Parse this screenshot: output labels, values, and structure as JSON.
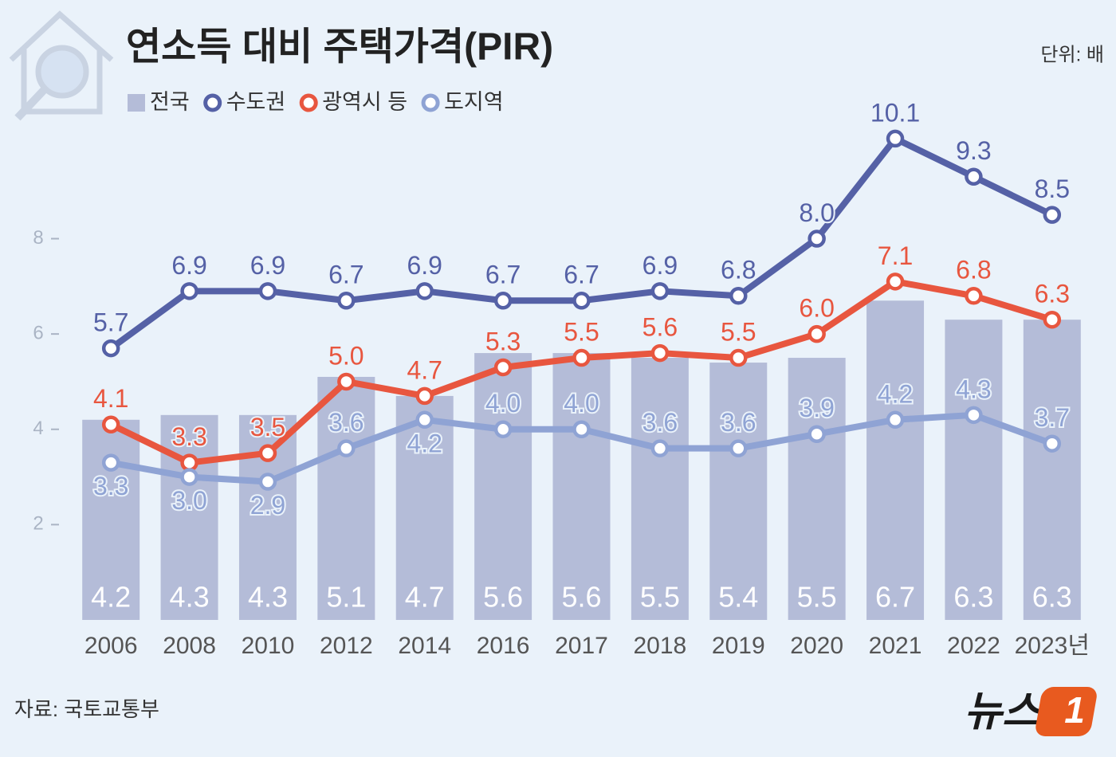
{
  "chart_data": {
    "type": "combo",
    "title": "연소득 대비 주택가격(PIR)",
    "unit": "단위: 배",
    "source": "자료: 국토교통부",
    "logo": {
      "text": "뉴스",
      "badge": "1"
    },
    "categories": [
      "2006",
      "2008",
      "2010",
      "2012",
      "2014",
      "2016",
      "2017",
      "2018",
      "2019",
      "2020",
      "2021",
      "2022",
      "2023년"
    ],
    "ylim": [
      0,
      10.5
    ],
    "yticks": [
      2,
      4,
      6,
      8
    ],
    "series": [
      {
        "name": "전국",
        "type": "bar",
        "color": "#b4bcd8",
        "values": [
          4.2,
          4.3,
          4.3,
          5.1,
          4.7,
          5.6,
          5.6,
          5.5,
          5.4,
          5.5,
          6.7,
          6.3,
          6.3
        ]
      },
      {
        "name": "수도권",
        "type": "line",
        "color": "#5561a6",
        "values": [
          5.7,
          6.9,
          6.9,
          6.7,
          6.9,
          6.7,
          6.7,
          6.9,
          6.8,
          8.0,
          10.1,
          9.3,
          8.5
        ],
        "value_labels": [
          "5.7",
          "6.9",
          "6.9",
          "6.7",
          "6.9",
          "6.7",
          "6.7",
          "6.9",
          "6.8",
          "8.0",
          "10.1",
          "9.3",
          "8.5"
        ]
      },
      {
        "name": "광역시 등",
        "type": "line",
        "color": "#e8563f",
        "values": [
          4.1,
          3.3,
          3.5,
          5.0,
          4.7,
          5.3,
          5.5,
          5.6,
          5.5,
          6.0,
          7.1,
          6.8,
          6.3
        ],
        "value_labels": [
          "4.1",
          "3.3",
          "3.5",
          "5.0",
          "4.7",
          "5.3",
          "5.5",
          "5.6",
          "5.5",
          "6.0",
          "7.1",
          "6.8",
          "6.3"
        ]
      },
      {
        "name": "도지역",
        "type": "line",
        "color": "#8fa3d4",
        "values": [
          3.3,
          3.0,
          2.9,
          3.6,
          4.2,
          4.0,
          4.0,
          3.6,
          3.6,
          3.9,
          4.2,
          4.3,
          3.7
        ],
        "value_labels": [
          "3.3",
          "3.0",
          "2.9",
          "3.6",
          "4.2",
          "4.0",
          "4.0",
          "3.6",
          "3.6",
          "3.9",
          "4.2",
          "4.3",
          "3.7"
        ]
      }
    ]
  }
}
